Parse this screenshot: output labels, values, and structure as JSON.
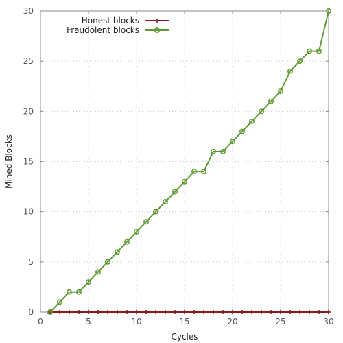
{
  "chart_data": {
    "type": "line",
    "xlabel": "Cycles",
    "ylabel": "Mined Blocks",
    "xlim": [
      0,
      30
    ],
    "ylim": [
      0,
      30
    ],
    "xticks": [
      0,
      5,
      10,
      15,
      20,
      25,
      30
    ],
    "yticks": [
      0,
      5,
      10,
      15,
      20,
      25,
      30
    ],
    "grid": true,
    "legend_position": "top-left",
    "x": [
      1,
      2,
      3,
      4,
      5,
      6,
      7,
      8,
      9,
      10,
      11,
      12,
      13,
      14,
      15,
      16,
      17,
      18,
      19,
      20,
      21,
      22,
      23,
      24,
      25,
      26,
      27,
      28,
      29,
      30
    ],
    "series": [
      {
        "name": "Honest blocks",
        "color": "#8b1a1a",
        "marker": "plus",
        "values": [
          0,
          0,
          0,
          0,
          0,
          0,
          0,
          0,
          0,
          0,
          0,
          0,
          0,
          0,
          0,
          0,
          0,
          0,
          0,
          0,
          0,
          0,
          0,
          0,
          0,
          0,
          0,
          0,
          0,
          0
        ]
      },
      {
        "name": "Fraudolent blocks",
        "color": "#5e9a33",
        "marker": "circle",
        "values": [
          0,
          1,
          2,
          2,
          3,
          4,
          5,
          6,
          7,
          8,
          9,
          10,
          11,
          12,
          13,
          14,
          14,
          16,
          16,
          17,
          18,
          19,
          20,
          21,
          22,
          24,
          25,
          26,
          26,
          30
        ]
      }
    ]
  }
}
